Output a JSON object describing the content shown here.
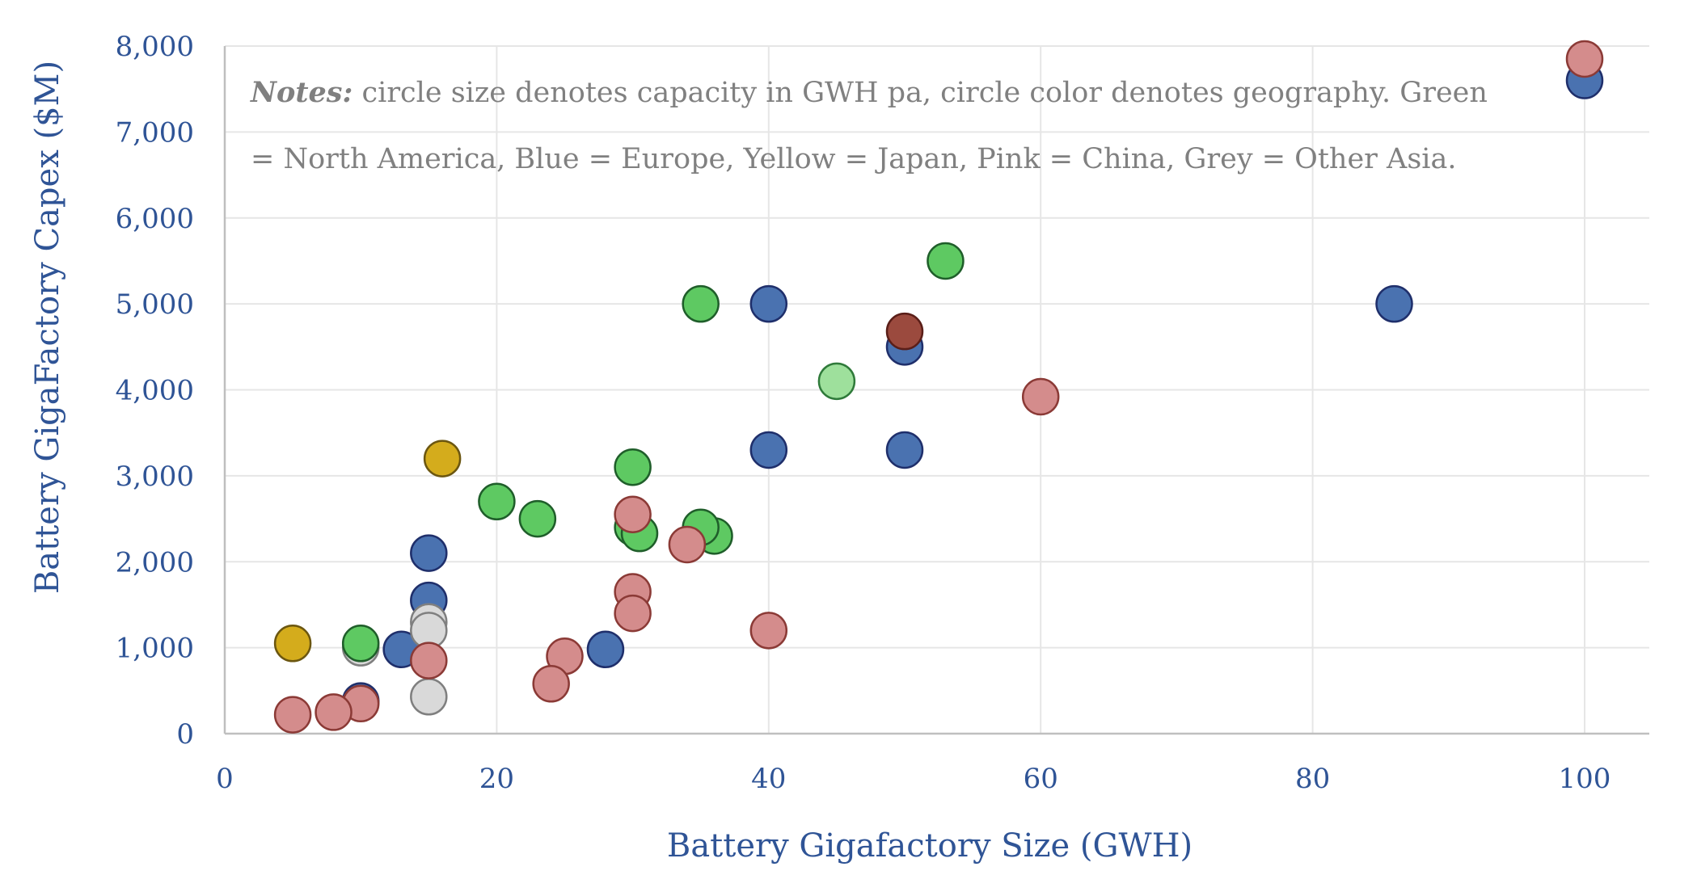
{
  "chart_data": {
    "type": "scatter",
    "title": "",
    "xlabel": "Battery Gigafactory Size (GWH)",
    "ylabel": "Battery GigaFactory Capex ($M)",
    "xlim": [
      0,
      105
    ],
    "ylim": [
      0,
      8000
    ],
    "x_ticks": [
      0,
      20,
      40,
      60,
      80,
      100
    ],
    "y_ticks": [
      0,
      1000,
      2000,
      3000,
      4000,
      5000,
      6000,
      7000,
      8000
    ],
    "x_tick_labels": [
      "0",
      "20",
      "40",
      "60",
      "80",
      "100"
    ],
    "y_tick_labels": [
      "0",
      "1,000",
      "2,000",
      "3,000",
      "4,000",
      "5,000",
      "6,000",
      "7,000",
      "8,000"
    ],
    "grid": true,
    "notes": {
      "label": "Notes:",
      "line1": " circle size denotes capacity in GWH pa, circle color denotes geography. Green",
      "line2": "= North America, Blue = Europe, Yellow = Japan, Pink = China, Grey = Other Asia."
    },
    "colors": {
      "blue": "#4a72b0",
      "green": "#5ec962",
      "lightgreen": "#9ee09c",
      "pink": "#d48c8c",
      "grey": "#d9d9d9",
      "yellow": "#d4ac1c",
      "brown": "#9b4a3e"
    },
    "series": [
      {
        "color_key": "blue",
        "points": [
          [
            100,
            7600
          ],
          [
            86,
            5000
          ],
          [
            40,
            5000
          ],
          [
            50,
            4500
          ],
          [
            50,
            3300
          ],
          [
            40,
            3300
          ],
          [
            15,
            2100
          ],
          [
            15,
            1550
          ],
          [
            13,
            980
          ],
          [
            28,
            980
          ],
          [
            10,
            380
          ]
        ]
      },
      {
        "color_key": "grey",
        "points": [
          [
            15,
            1300
          ],
          [
            15,
            1200
          ],
          [
            10,
            1000
          ],
          [
            15,
            430
          ]
        ]
      },
      {
        "color_key": "green",
        "points": [
          [
            53,
            5500
          ],
          [
            35,
            5000
          ],
          [
            30,
            3100
          ],
          [
            20,
            2700
          ],
          [
            23,
            2500
          ],
          [
            36,
            2300
          ],
          [
            35,
            2400
          ],
          [
            30,
            2400
          ],
          [
            30.5,
            2330
          ],
          [
            10,
            1050
          ]
        ]
      },
      {
        "color_key": "lightgreen",
        "points": [
          [
            45,
            4100
          ]
        ]
      },
      {
        "color_key": "yellow",
        "points": [
          [
            16,
            3200
          ],
          [
            5,
            1050
          ]
        ]
      },
      {
        "color_key": "pink",
        "points": [
          [
            100,
            7850
          ],
          [
            60,
            3920
          ],
          [
            30,
            2550
          ],
          [
            34,
            2200
          ],
          [
            30,
            1650
          ],
          [
            30,
            1400
          ],
          [
            40,
            1200
          ],
          [
            25,
            900
          ],
          [
            24,
            580
          ],
          [
            15,
            850
          ],
          [
            10,
            350
          ],
          [
            8,
            250
          ],
          [
            5,
            220
          ]
        ]
      },
      {
        "color_key": "brown",
        "points": [
          [
            50,
            4680
          ]
        ]
      }
    ]
  }
}
